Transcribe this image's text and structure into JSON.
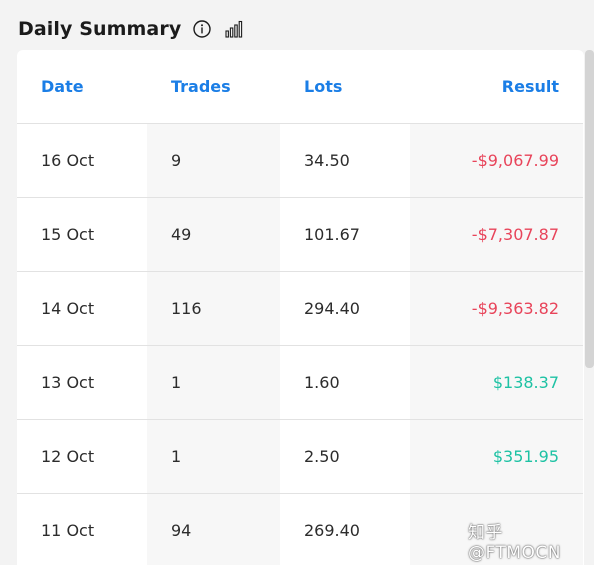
{
  "header": {
    "title": "Daily Summary",
    "info_icon": "info-icon",
    "chart_icon": "bar-chart-icon"
  },
  "table": {
    "columns": {
      "date": "Date",
      "trades": "Trades",
      "lots": "Lots",
      "result": "Result"
    },
    "rows": [
      {
        "date": "16 Oct",
        "trades": "9",
        "lots": "34.50",
        "result": "-$9,067.99",
        "sign": "neg"
      },
      {
        "date": "15 Oct",
        "trades": "49",
        "lots": "101.67",
        "result": "-$7,307.87",
        "sign": "neg"
      },
      {
        "date": "14 Oct",
        "trades": "116",
        "lots": "294.40",
        "result": "-$9,363.82",
        "sign": "neg"
      },
      {
        "date": "13 Oct",
        "trades": "1",
        "lots": "1.60",
        "result": "$138.37",
        "sign": "pos"
      },
      {
        "date": "12 Oct",
        "trades": "1",
        "lots": "2.50",
        "result": "$351.95",
        "sign": "pos"
      },
      {
        "date": "11 Oct",
        "trades": "94",
        "lots": "269.40",
        "result": "",
        "sign": "neg"
      }
    ]
  },
  "colors": {
    "accent": "#1b7ee6",
    "negative": "#e8445a",
    "positive": "#1ec2a4"
  },
  "watermark": "知乎 @FTMOCN"
}
